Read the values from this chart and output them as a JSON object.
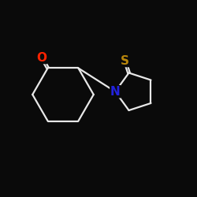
{
  "background_color": "#0a0a0a",
  "bond_color": "#e8e8e8",
  "o_color": "#ff2200",
  "n_color": "#2222dd",
  "s_color": "#b8860b",
  "lw": 1.6,
  "fontsize": 11,
  "xlim": [
    0,
    10
  ],
  "ylim": [
    0,
    10
  ]
}
